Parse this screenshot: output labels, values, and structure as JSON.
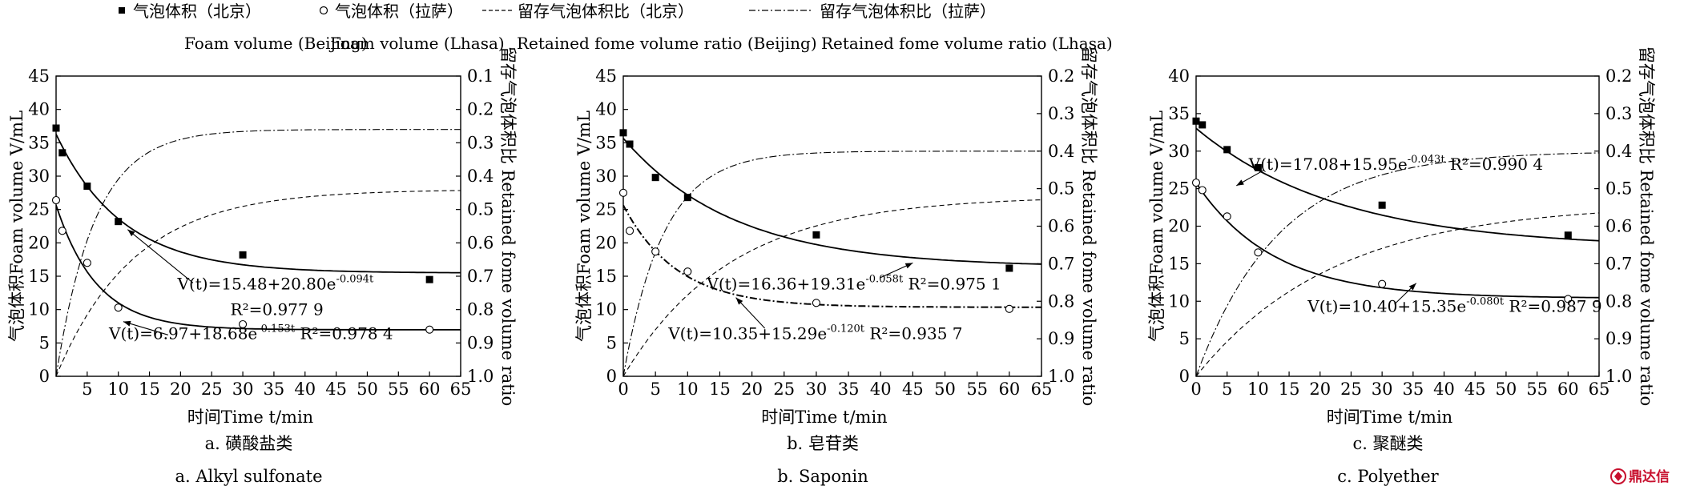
{
  "legend": {
    "items": [
      {
        "zh": "气泡体积（北京）",
        "en": "Foam volume (Beijing)",
        "symbol": "filled-square"
      },
      {
        "zh": "气泡体积（拉萨）",
        "en": "Foam volume (Lhasa)",
        "symbol": "open-circle"
      },
      {
        "zh": "留存气泡体积比（北京）",
        "en": "Retained fome volume ratio (Beijing)",
        "symbol": "dashed-line"
      },
      {
        "zh": "留存气泡体积比（拉萨）",
        "en": "Retained fome volume ratio (Lhasa)",
        "symbol": "dash-dot-line"
      }
    ]
  },
  "axes_text": {
    "ylabel_left": "气泡体积Foam volume V/mL",
    "ylabel_right": "留存气泡体积比 Retained fome volume ratio",
    "xlabel": "时间Time t/min"
  },
  "watermark": "鼎达信",
  "colors": {
    "ink": "#000000",
    "background": "#ffffff",
    "watermark": "#c8102e"
  },
  "chart_data": [
    {
      "type": "scatter",
      "caption_zh": "a. 磺酸盐类",
      "caption_en": "a. Alkyl sulfonate",
      "xlabel": "时间Time t/min",
      "ylabel": "气泡体积Foam volume V/mL",
      "y2label": "留存气泡体积比 Retained fome volume ratio",
      "xlim": [
        0,
        65
      ],
      "ylim": [
        0,
        45
      ],
      "y2lim": [
        0.1,
        1.0
      ],
      "y2_inverted": true,
      "xticks": [
        5,
        10,
        15,
        20,
        25,
        30,
        35,
        40,
        45,
        50,
        55,
        60,
        65
      ],
      "yticks": [
        0,
        5,
        10,
        15,
        20,
        25,
        30,
        35,
        40,
        45
      ],
      "y2ticks": [
        0.1,
        0.2,
        0.3,
        0.4,
        0.5,
        0.6,
        0.7,
        0.8,
        0.9,
        1.0
      ],
      "y2ticklabels": [
        "0.1",
        "0.2",
        "0.3",
        "0.4",
        "0.5",
        "0.6",
        "0.7",
        "0.8",
        "0.9",
        "1.0"
      ],
      "series": [
        {
          "name": "气泡体积（北京）",
          "marker": "filled-square",
          "x": [
            0,
            1,
            5,
            10,
            30,
            60
          ],
          "y": [
            37.2,
            33.5,
            28.5,
            23.2,
            18.2,
            14.5
          ]
        },
        {
          "name": "气泡体积（拉萨）",
          "marker": "open-circle",
          "x": [
            0,
            1,
            5,
            10,
            30,
            60
          ],
          "y": [
            26.4,
            21.8,
            17.0,
            10.3,
            7.8,
            7.0
          ]
        }
      ],
      "fits": [
        {
          "a": 15.48,
          "b": 20.8,
          "k": 0.094,
          "style": "solid"
        },
        {
          "a": 6.97,
          "b": 18.68,
          "k": 0.153,
          "style": "solid"
        }
      ],
      "ratio_curves": [
        {
          "style": "dashed",
          "asym": 0.44,
          "k": 0.08
        },
        {
          "style": "dashdot",
          "asym": 0.26,
          "k": 0.16
        }
      ],
      "equations": [
        {
          "pre": "V(t)=15.48+20.80e",
          "exp": "-0.094t",
          "post": "",
          "tx": 19.5,
          "ty": 13.0
        },
        {
          "pre": "R²=0.977 9",
          "exp": "",
          "post": "",
          "tx": 28,
          "ty": 9.2
        },
        {
          "pre": "V(t)=6.97+18.68e",
          "exp": "-0.153t",
          "post": "  R²=0.978 4",
          "tx": 8.5,
          "ty": 5.6
        }
      ],
      "arrows": [
        {
          "x1": 22,
          "y1": 14.0,
          "x2": 11.5,
          "y2": 22.0
        },
        {
          "x1": 18,
          "y1": 6.2,
          "x2": 10.8,
          "y2": 8.2
        }
      ]
    },
    {
      "type": "scatter",
      "caption_zh": "b. 皂苷类",
      "caption_en": "b. Saponin",
      "xlabel": "时间Time t/min",
      "ylabel": "气泡体积Foam volume V/mL",
      "y2label": "留存气泡体积比 Retained fome volume ratio",
      "xlim": [
        0,
        65
      ],
      "ylim": [
        0,
        45
      ],
      "y2lim": [
        0.2,
        1.0
      ],
      "y2_inverted": true,
      "xticks": [
        0,
        5,
        10,
        15,
        20,
        25,
        30,
        35,
        40,
        45,
        50,
        55,
        60,
        65
      ],
      "yticks": [
        0,
        5,
        10,
        15,
        20,
        25,
        30,
        35,
        40,
        45
      ],
      "y2ticks": [
        0.2,
        0.3,
        0.4,
        0.5,
        0.6,
        0.7,
        0.8,
        0.9,
        1.0
      ],
      "y2ticklabels": [
        "0.2",
        "0.3",
        "0.4",
        "0.5",
        "0.6",
        "0.7",
        "0.8",
        "0.9",
        "1.0"
      ],
      "series": [
        {
          "name": "气泡体积（北京）",
          "marker": "filled-square",
          "x": [
            0,
            1,
            5,
            10,
            30,
            60
          ],
          "y": [
            36.5,
            34.8,
            29.8,
            26.8,
            21.2,
            16.2
          ]
        },
        {
          "name": "气泡体积（拉萨）",
          "marker": "open-circle",
          "x": [
            0,
            1,
            5,
            10,
            30,
            60
          ],
          "y": [
            27.5,
            21.8,
            18.7,
            15.7,
            11.0,
            10.1
          ]
        }
      ],
      "fits": [
        {
          "a": 16.36,
          "b": 19.31,
          "k": 0.058,
          "style": "solid"
        },
        {
          "a": 10.35,
          "b": 15.29,
          "k": 0.12,
          "style": "dashdot-bold"
        }
      ],
      "ratio_curves": [
        {
          "style": "dashed",
          "asym": 0.52,
          "k": 0.06
        },
        {
          "style": "dashdot",
          "asym": 0.4,
          "k": 0.16
        }
      ],
      "equations": [
        {
          "pre": "V(t)=16.36+19.31e",
          "exp": "-0.058t",
          "post": "  R²=0.975 1",
          "tx": 13,
          "ty": 13.0
        },
        {
          "pre": "V(t)=10.35+15.29e",
          "exp": "-0.120t",
          "post": "  R²=0.935 7",
          "tx": 7,
          "ty": 5.6
        }
      ],
      "arrows": [
        {
          "x1": 40,
          "y1": 14.8,
          "x2": 45,
          "y2": 17.0
        },
        {
          "x1": 22,
          "y1": 7.2,
          "x2": 17.5,
          "y2": 11.8
        }
      ]
    },
    {
      "type": "scatter",
      "caption_zh": "c. 聚醚类",
      "caption_en": "c. Polyether",
      "xlabel": "时间Time t/min",
      "ylabel": "气泡体积Foam volume V/mL",
      "y2label": "留存气泡体积比 Retained fome volume ratio",
      "xlim": [
        0,
        65
      ],
      "ylim": [
        0,
        40
      ],
      "y2lim": [
        0.2,
        1.0
      ],
      "y2_inverted": true,
      "xticks": [
        0,
        5,
        10,
        15,
        20,
        25,
        30,
        35,
        40,
        45,
        50,
        55,
        60,
        65
      ],
      "yticks": [
        0,
        5,
        10,
        15,
        20,
        25,
        30,
        35,
        40
      ],
      "y2ticks": [
        0.2,
        0.3,
        0.4,
        0.5,
        0.6,
        0.7,
        0.8,
        0.9,
        1.0
      ],
      "y2ticklabels": [
        "0.2",
        "0.3",
        "0.4",
        "0.5",
        "0.6",
        "0.7",
        "0.8",
        "0.9",
        "1.0"
      ],
      "series": [
        {
          "name": "气泡体积（北京）",
          "marker": "filled-square",
          "x": [
            0,
            1,
            5,
            10,
            30,
            60
          ],
          "y": [
            34.0,
            33.5,
            30.2,
            27.8,
            22.8,
            18.8
          ]
        },
        {
          "name": "气泡体积（拉萨）",
          "marker": "open-circle",
          "x": [
            0,
            1,
            5,
            10,
            30,
            60
          ],
          "y": [
            25.8,
            24.8,
            21.3,
            16.5,
            12.3,
            10.3
          ]
        }
      ],
      "fits": [
        {
          "a": 17.08,
          "b": 15.95,
          "k": 0.043,
          "style": "solid"
        },
        {
          "a": 10.4,
          "b": 15.35,
          "k": 0.08,
          "style": "solid"
        }
      ],
      "ratio_curves": [
        {
          "style": "dashed",
          "asym": 0.54,
          "k": 0.045
        },
        {
          "style": "dashdot",
          "asym": 0.4,
          "k": 0.075
        }
      ],
      "equations": [
        {
          "pre": "V(t)=17.08+15.95e",
          "exp": "-0.043t",
          "post": "  R²=0.990 4",
          "tx": 8.5,
          "ty": 27.5
        },
        {
          "pre": "V(t)=10.40+15.35e",
          "exp": "-0.080t",
          "post": "  R²=0.987 9",
          "tx": 18,
          "ty": 8.6
        }
      ],
      "arrows": [
        {
          "x1": 11,
          "y1": 27.5,
          "x2": 6.5,
          "y2": 25.4
        },
        {
          "x1": 32,
          "y1": 9.6,
          "x2": 35.5,
          "y2": 12.4
        }
      ]
    }
  ]
}
